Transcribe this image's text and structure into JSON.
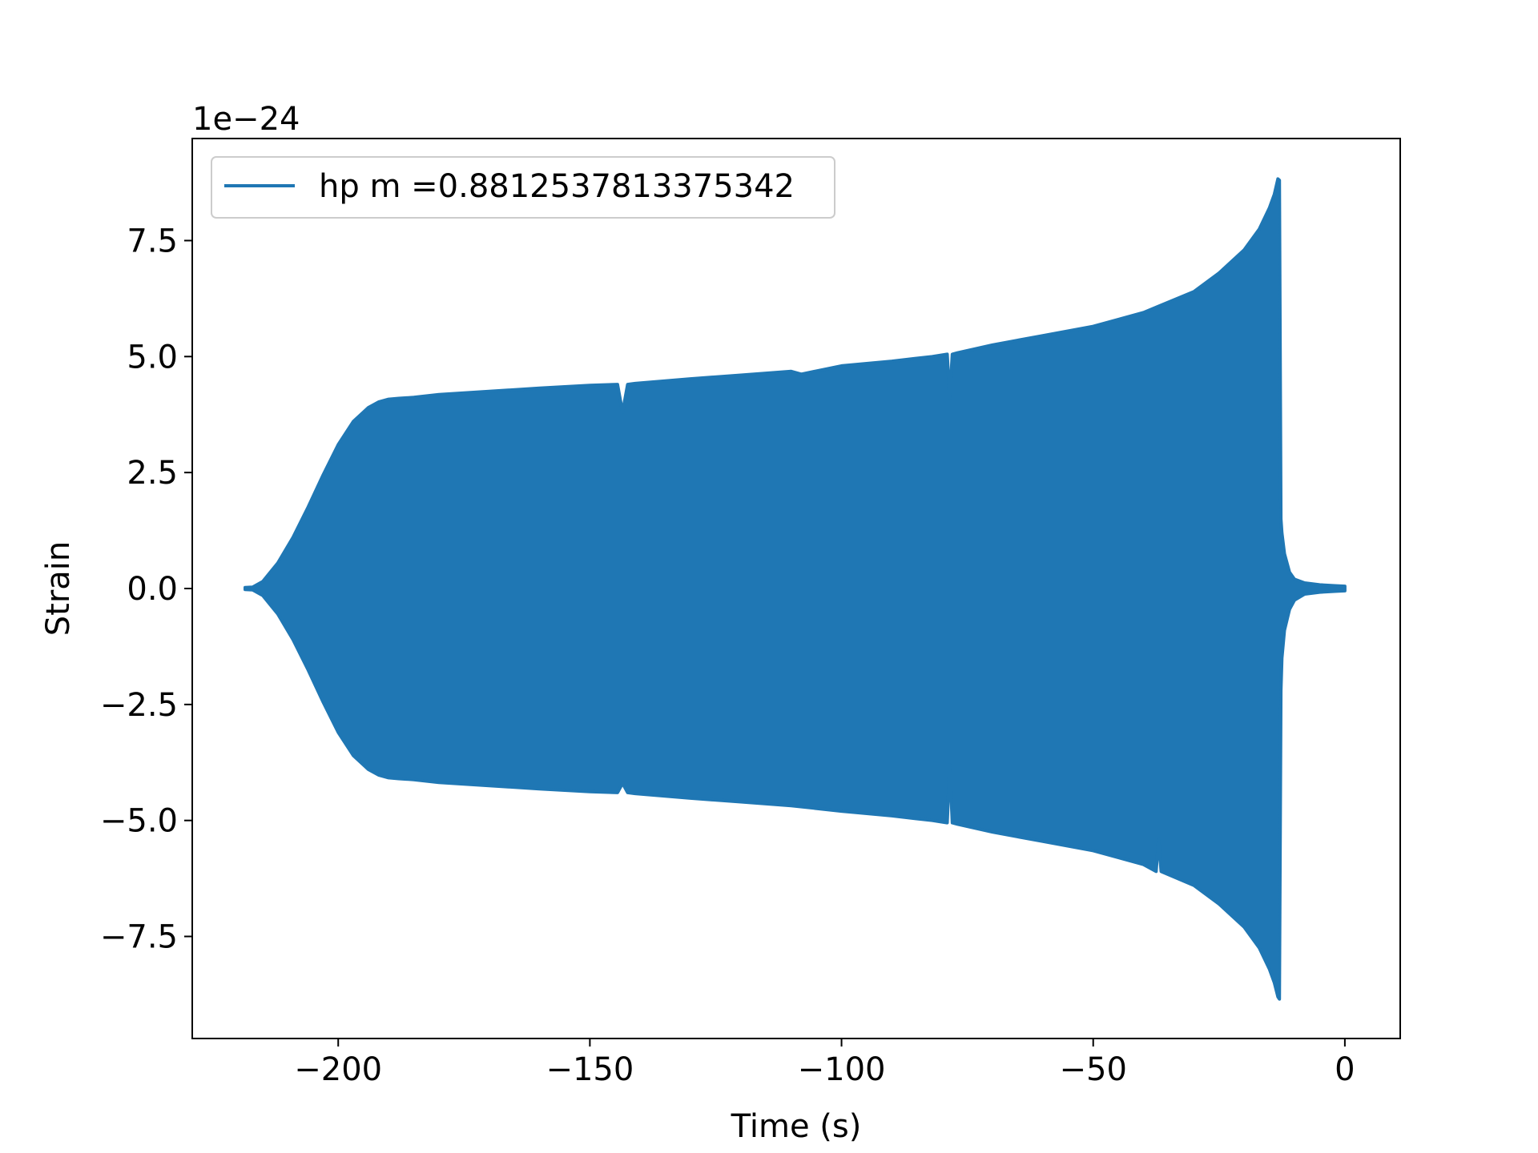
{
  "chart_data": {
    "type": "line",
    "title": "",
    "xlabel": "Time (s)",
    "ylabel": "Strain",
    "y_offset_label": "1e−24",
    "xlim": [
      -229,
      11
    ],
    "ylim": [
      -9.7,
      9.7
    ],
    "xticks": [
      -200,
      -150,
      -100,
      -50,
      0
    ],
    "xtick_labels": [
      "−200",
      "−150",
      "−100",
      "−50",
      "0"
    ],
    "yticks": [
      -7.5,
      -5.0,
      -2.5,
      0.0,
      2.5,
      5.0,
      7.5
    ],
    "ytick_labels": [
      "−7.5",
      "−5.0",
      "−2.5",
      "0.0",
      "2.5",
      "5.0",
      "7.5"
    ],
    "grid": false,
    "legend_position": "upper-left",
    "series": [
      {
        "name": "hp m =0.8812537813375342",
        "color": "#1f77b4",
        "envelope_upper": {
          "t": [
            -218.5,
            -217,
            -215,
            -212,
            -209,
            -206,
            -203,
            -200,
            -197,
            -194,
            -192,
            -190,
            -188,
            -185,
            -180,
            -170,
            -160,
            -150,
            -144.5,
            -143.5,
            -142.5,
            -141,
            -130,
            -120,
            -110,
            -108,
            -100,
            -90,
            -82,
            -79,
            -78.5,
            -78,
            -77,
            -70,
            -60,
            -50,
            -40,
            -30,
            -25,
            -20,
            -17,
            -15,
            -14,
            -13.3,
            -13,
            -12.7,
            -12.5,
            -12,
            -11,
            -10,
            -8,
            -5,
            -2,
            0
          ],
          "y": [
            0.02,
            0.03,
            0.15,
            0.55,
            1.1,
            1.75,
            2.45,
            3.1,
            3.6,
            3.9,
            4.02,
            4.08,
            4.1,
            4.12,
            4.18,
            4.25,
            4.32,
            4.38,
            4.4,
            3.8,
            4.4,
            4.42,
            4.52,
            4.6,
            4.68,
            4.62,
            4.8,
            4.9,
            5.0,
            5.05,
            4.1,
            5.05,
            5.08,
            5.25,
            5.45,
            5.65,
            5.95,
            6.4,
            6.8,
            7.3,
            7.75,
            8.2,
            8.5,
            8.83,
            8.8,
            1.5,
            1.2,
            0.75,
            0.35,
            0.2,
            0.12,
            0.08,
            0.06,
            0.05
          ]
        },
        "envelope_lower": {
          "t": [
            -218.5,
            -217,
            -215,
            -212,
            -209,
            -206,
            -203,
            -200,
            -197,
            -194,
            -192,
            -190,
            -188,
            -185,
            -180,
            -170,
            -160,
            -150,
            -144.5,
            -143.5,
            -142.5,
            -141,
            -130,
            -120,
            -110,
            -100,
            -90,
            -82,
            -79,
            -78.5,
            -78,
            -77,
            -70,
            -60,
            -50,
            -40,
            -37.5,
            -37,
            -36.5,
            -30,
            -25,
            -20,
            -17,
            -15,
            -14,
            -13.3,
            -13,
            -12.7,
            -12.5,
            -12,
            -11,
            -10,
            -8,
            -5,
            -2,
            0
          ],
          "y": [
            -0.02,
            -0.03,
            -0.15,
            -0.55,
            -1.1,
            -1.75,
            -2.45,
            -3.1,
            -3.6,
            -3.9,
            -4.02,
            -4.08,
            -4.1,
            -4.12,
            -4.18,
            -4.25,
            -4.32,
            -4.38,
            -4.4,
            -4.2,
            -4.4,
            -4.42,
            -4.52,
            -4.6,
            -4.68,
            -4.8,
            -4.9,
            -5.0,
            -5.05,
            -3.8,
            -5.05,
            -5.08,
            -5.25,
            -5.45,
            -5.65,
            -5.95,
            -6.1,
            -5.4,
            -6.1,
            -6.4,
            -6.8,
            -7.3,
            -7.75,
            -8.2,
            -8.5,
            -8.8,
            -8.85,
            -2.2,
            -1.5,
            -0.9,
            -0.45,
            -0.25,
            -0.12,
            -0.08,
            -0.06,
            -0.05
          ]
        }
      }
    ]
  }
}
